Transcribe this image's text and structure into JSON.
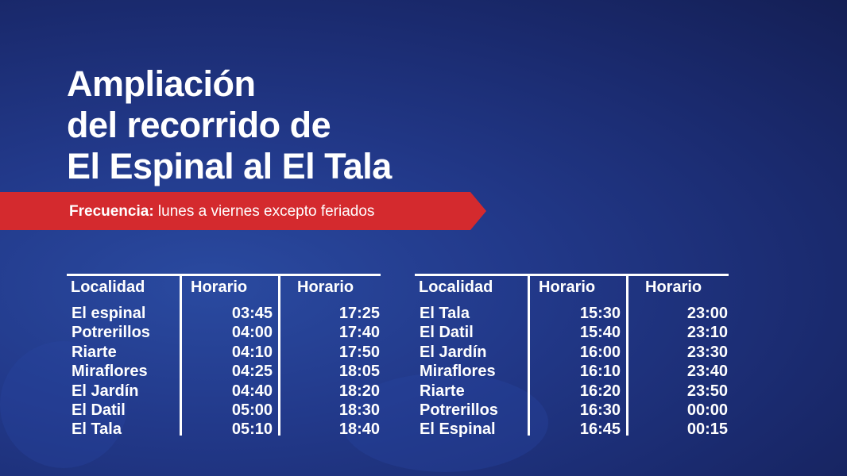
{
  "title": [
    "Ampliación",
    "del recorrido de",
    "El Espinal al El Tala"
  ],
  "banner": {
    "label": "Frecuencia:",
    "text": " lunes a viernes excepto feriados"
  },
  "colors": {
    "background": "#1e3380",
    "banner": "#d42a2e",
    "text": "#ffffff"
  },
  "tables": [
    {
      "headers": [
        "Localidad",
        "Horario",
        "Horario"
      ],
      "rows": [
        [
          "El espinal",
          "03:45",
          "17:25"
        ],
        [
          "Potrerillos",
          "04:00",
          "17:40"
        ],
        [
          "Riarte",
          "04:10",
          "17:50"
        ],
        [
          "Miraflores",
          "04:25",
          "18:05"
        ],
        [
          "El Jardín",
          "04:40",
          "18:20"
        ],
        [
          "El Datil",
          "05:00",
          "18:30"
        ],
        [
          "El Tala",
          "05:10",
          "18:40"
        ]
      ]
    },
    {
      "headers": [
        "Localidad",
        "Horario",
        "Horario"
      ],
      "rows": [
        [
          "El Tala",
          "15:30",
          "23:00"
        ],
        [
          "El Datil",
          "15:40",
          "23:10"
        ],
        [
          "El Jardín",
          "16:00",
          "23:30"
        ],
        [
          "Miraflores",
          "16:10",
          "23:40"
        ],
        [
          "Riarte",
          "16:20",
          "23:50"
        ],
        [
          "Potrerillos",
          "16:30",
          "00:00"
        ],
        [
          "El Espinal",
          "16:45",
          "00:15"
        ]
      ]
    }
  ]
}
